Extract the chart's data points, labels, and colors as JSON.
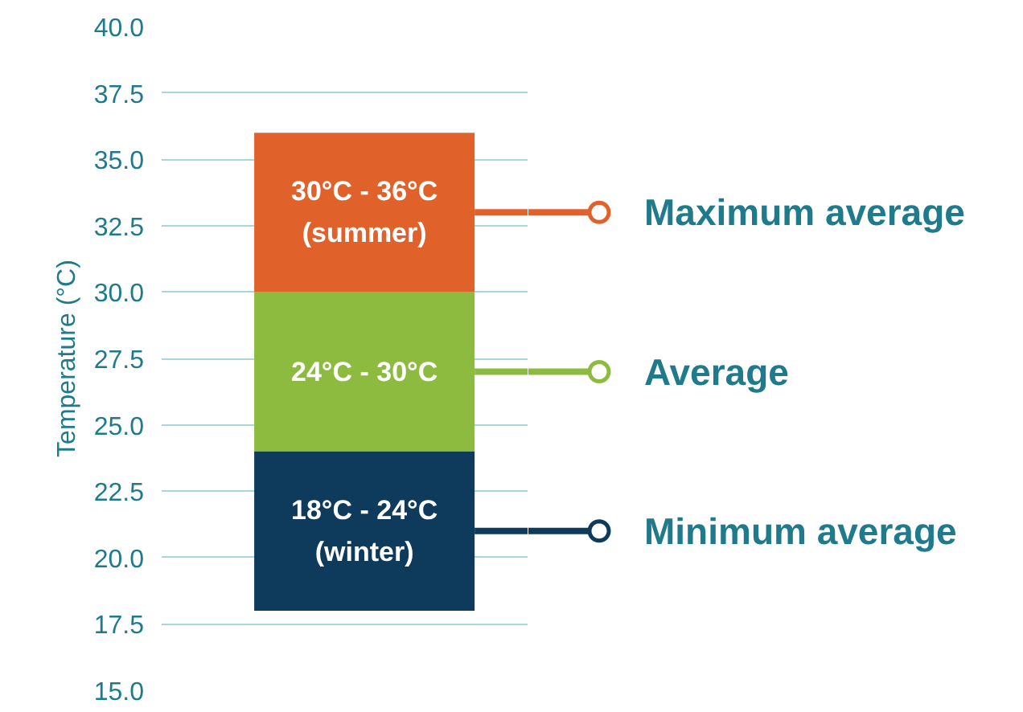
{
  "chart_data": {
    "type": "bar",
    "ylabel": "Temperature (°C)",
    "categories": [
      null
    ],
    "series": [
      {
        "color": "#e0622a",
        "base": [
          30
        ],
        "values": [
          6
        ]
      },
      {
        "color": "#8dbb3f",
        "base": [
          24
        ],
        "values": [
          6
        ]
      },
      {
        "color": "#0e3a5c",
        "base": [
          18
        ],
        "values": [
          6
        ]
      }
    ],
    "annotations": [
      "30°C - 36°C\n(summer)",
      "Maximum average",
      "24°C - 30°C",
      "Average",
      "18°C - 24°C\n(winter)",
      "Minimum average"
    ],
    "ylim": [
      15,
      40
    ],
    "yticks": [
      {
        "value": 15,
        "label": "15.0"
      },
      {
        "value": 17.5,
        "label": "17.5"
      },
      {
        "value": 20,
        "label": "20.0"
      },
      {
        "value": 22.5,
        "label": "22.5"
      },
      {
        "value": 25,
        "label": "25.0"
      },
      {
        "value": 27.5,
        "label": "27.5"
      },
      {
        "value": 30,
        "label": "30.0"
      },
      {
        "value": 32.5,
        "label": "32.5"
      },
      {
        "value": 35,
        "label": "35.0"
      },
      {
        "value": 37.5,
        "label": "37.5"
      },
      {
        "value": 40,
        "label": "40.0"
      }
    ],
    "grid": "y"
  }
}
